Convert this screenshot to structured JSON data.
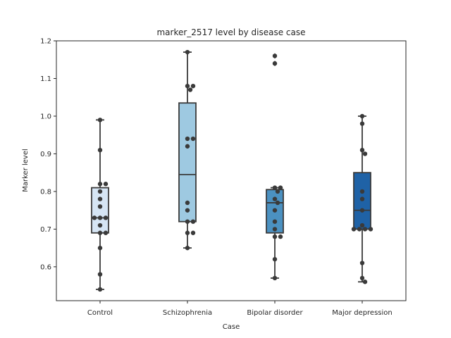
{
  "chart_data": {
    "type": "box",
    "title": "marker_2517 level by disease case",
    "xlabel": "Case",
    "ylabel": "Marker level",
    "ylim": [
      0.51,
      1.2
    ],
    "yticks": [
      0.6,
      0.7,
      0.8,
      0.9,
      1.0,
      1.1,
      1.2
    ],
    "grid": false,
    "categories": [
      "Control",
      "Schizophrenia",
      "Bipolar disorder",
      "Major depression"
    ],
    "colors": [
      "#d6e5f4",
      "#9ec9e1",
      "#4b91c1",
      "#1f62a6"
    ],
    "boxes": [
      {
        "q1": 0.69,
        "median": 0.73,
        "q3": 0.81,
        "whisker_low": 0.54,
        "whisker_high": 0.99,
        "outliers": []
      },
      {
        "q1": 0.72,
        "median": 0.845,
        "q3": 1.035,
        "whisker_low": 0.65,
        "whisker_high": 1.17,
        "outliers": []
      },
      {
        "q1": 0.69,
        "median": 0.77,
        "q3": 0.805,
        "whisker_low": 0.57,
        "whisker_high": 0.81,
        "outliers": [
          1.14,
          1.16
        ]
      },
      {
        "q1": 0.7,
        "median": 0.75,
        "q3": 0.85,
        "whisker_low": 0.56,
        "whisker_high": 1.0,
        "outliers": []
      }
    ],
    "points": [
      [
        0.99,
        0.91,
        0.82,
        0.82,
        0.8,
        0.78,
        0.76,
        0.73,
        0.73,
        0.73,
        0.71,
        0.69,
        0.69,
        0.65,
        0.58,
        0.54
      ],
      [
        1.17,
        1.08,
        1.08,
        1.07,
        0.94,
        0.94,
        0.92,
        0.77,
        0.75,
        0.72,
        0.72,
        0.69,
        0.69,
        0.65
      ],
      [
        1.16,
        1.14,
        0.81,
        0.81,
        0.8,
        0.78,
        0.77,
        0.75,
        0.72,
        0.7,
        0.68,
        0.68,
        0.62,
        0.57
      ],
      [
        1.0,
        0.98,
        0.91,
        0.9,
        0.8,
        0.78,
        0.75,
        0.71,
        0.7,
        0.7,
        0.7,
        0.7,
        0.61,
        0.57,
        0.56
      ]
    ]
  }
}
